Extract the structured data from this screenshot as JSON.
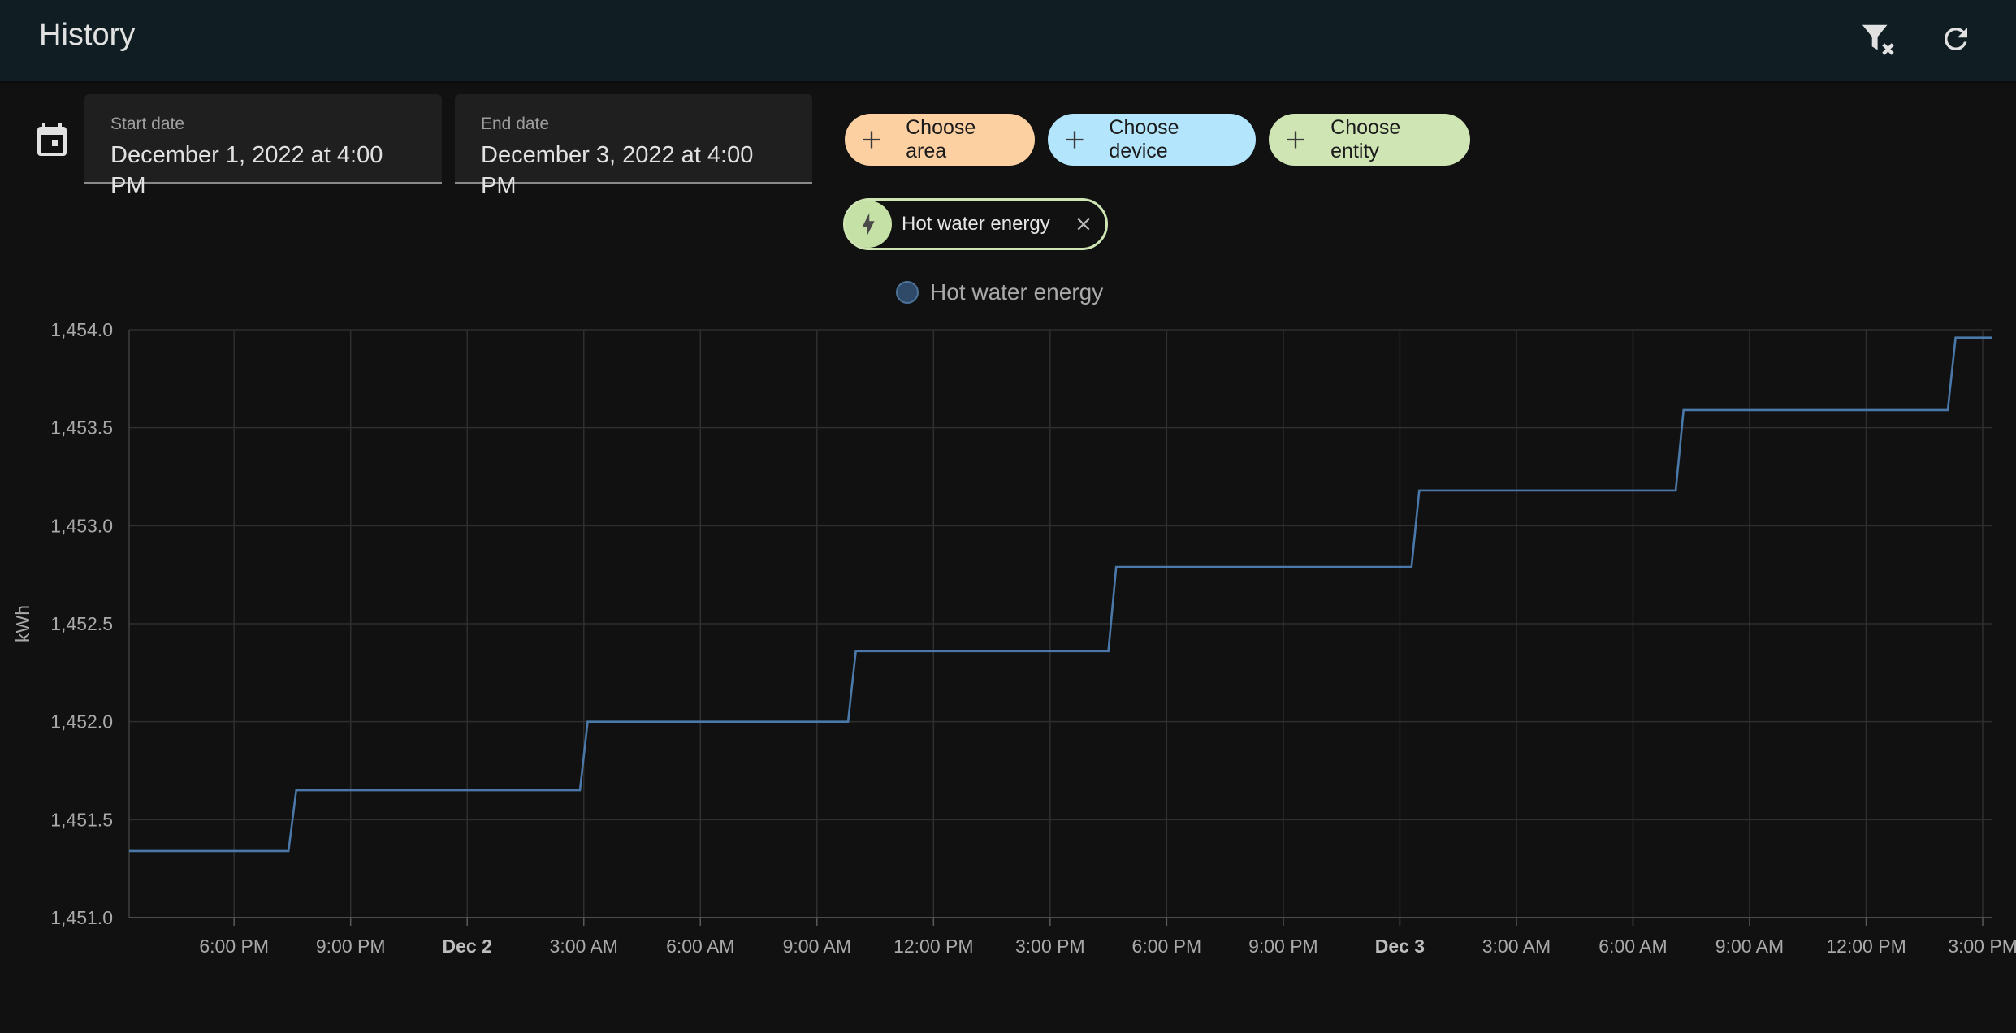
{
  "header": {
    "title": "History",
    "icons": [
      "filter-remove-icon",
      "refresh-icon"
    ]
  },
  "date_range": {
    "calendar_icon": "calendar-icon",
    "start_label": "Start date",
    "start_value": "December 1, 2022 at 4:00 PM",
    "end_label": "End date",
    "end_value": "December 3, 2022 at 4:00 PM"
  },
  "target_picker": {
    "area_label": "Choose area",
    "device_label": "Choose device",
    "entity_label": "Choose entity",
    "area_color": "#fdd0a2",
    "device_color": "#b3e5fc",
    "entity_color": "#cfe5b4"
  },
  "selected_entities": [
    {
      "label": "Hot water energy",
      "icon": "lightning-bolt-icon",
      "remove_icon": "close-icon"
    }
  ],
  "chart_data": {
    "type": "line",
    "step": true,
    "ylabel": "kWh",
    "ylim": [
      1451.0,
      1454.0
    ],
    "y_ticks": [
      "1,454.0",
      "1,453.5",
      "1,453.0",
      "1,452.5",
      "1,452.0",
      "1,451.5",
      "1,451.0"
    ],
    "x_range_hours": [
      -0.7,
      47.25
    ],
    "x_ticks": [
      {
        "label": "6:00 PM",
        "h": 2,
        "bold": false
      },
      {
        "label": "9:00 PM",
        "h": 5,
        "bold": false
      },
      {
        "label": "Dec 2",
        "h": 8,
        "bold": true
      },
      {
        "label": "3:00 AM",
        "h": 11,
        "bold": false
      },
      {
        "label": "6:00 AM",
        "h": 14,
        "bold": false
      },
      {
        "label": "9:00 AM",
        "h": 17,
        "bold": false
      },
      {
        "label": "12:00 PM",
        "h": 20,
        "bold": false
      },
      {
        "label": "3:00 PM",
        "h": 23,
        "bold": false
      },
      {
        "label": "6:00 PM",
        "h": 26,
        "bold": false
      },
      {
        "label": "9:00 PM",
        "h": 29,
        "bold": false
      },
      {
        "label": "Dec 3",
        "h": 32,
        "bold": true
      },
      {
        "label": "3:00 AM",
        "h": 35,
        "bold": false
      },
      {
        "label": "6:00 AM",
        "h": 38,
        "bold": false
      },
      {
        "label": "9:00 AM",
        "h": 41,
        "bold": false
      },
      {
        "label": "12:00 PM",
        "h": 44,
        "bold": false
      },
      {
        "label": "3:00 PM",
        "h": 47,
        "bold": false
      }
    ],
    "grid": true,
    "legend": "top-center",
    "series": [
      {
        "name": "Hot water energy",
        "color": "#4a78a8",
        "points": [
          [
            -0.7,
            1451.34
          ],
          [
            3.4,
            1451.34
          ],
          [
            3.6,
            1451.65
          ],
          [
            10.9,
            1451.65
          ],
          [
            11.1,
            1452.0
          ],
          [
            17.8,
            1452.0
          ],
          [
            18.0,
            1452.36
          ],
          [
            24.5,
            1452.36
          ],
          [
            24.7,
            1452.79
          ],
          [
            32.3,
            1452.79
          ],
          [
            32.5,
            1453.18
          ],
          [
            39.1,
            1453.18
          ],
          [
            39.3,
            1453.59
          ],
          [
            46.1,
            1453.59
          ],
          [
            46.3,
            1453.96
          ],
          [
            47.25,
            1453.96
          ]
        ]
      }
    ]
  }
}
